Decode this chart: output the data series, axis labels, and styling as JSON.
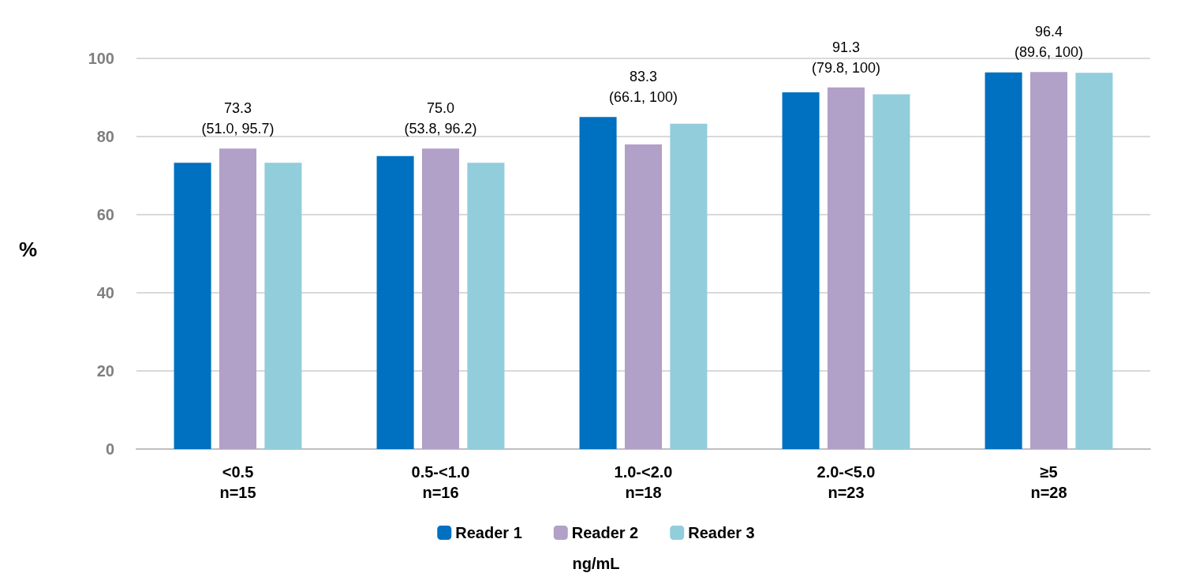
{
  "chart_data": {
    "type": "bar",
    "ylabel": "%",
    "xlabel": "ng/mL",
    "categories": [
      "<0.5\nn=15",
      "0.5-<1.0\nn=16",
      "1.0-<2.0\nn=18",
      "2.0-<5.0\nn=23",
      "≥5\nn=28"
    ],
    "series": [
      {
        "name": "Reader 1",
        "color": "#0070c0",
        "values": [
          73.3,
          75.0,
          85.0,
          91.3,
          96.4
        ]
      },
      {
        "name": "Reader 2",
        "color": "#b1a0c7",
        "values": [
          76.9,
          76.9,
          78.0,
          92.6,
          96.5
        ]
      },
      {
        "name": "Reader 3",
        "color": "#92cddc",
        "values": [
          73.3,
          73.3,
          83.3,
          90.8,
          96.3
        ]
      }
    ],
    "annotations": [
      "73.3\n(51.0, 95.7)",
      "75.0\n(53.8, 96.2)",
      "83.3\n(66.1, 100)",
      "91.3\n(79.8, 100)",
      "96.4\n(89.6, 100)"
    ],
    "ylim": [
      0,
      100
    ],
    "yticks": [
      0,
      20,
      40,
      60,
      80,
      100
    ],
    "grid": "y",
    "legend": "bottom"
  }
}
